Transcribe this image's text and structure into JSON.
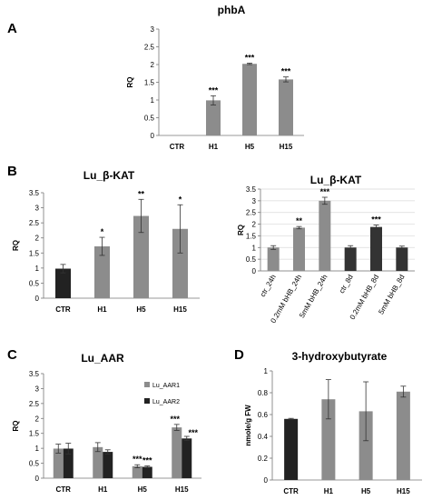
{
  "panel_letters": [
    "A",
    "B",
    "C",
    "D"
  ],
  "chart_data": [
    {
      "type": "bar",
      "title": "phbA",
      "ylabel": "RQ",
      "xlabel": "",
      "ylim": [
        0,
        3
      ],
      "yticks": [
        "0",
        "0.5",
        "1",
        "1.5",
        "2",
        "2.5",
        "3"
      ],
      "categories": [
        "CTR",
        "H1",
        "H5",
        "H15"
      ],
      "series": [
        {
          "values": [
            0,
            0.99,
            2.02,
            1.58
          ],
          "errors": [
            0,
            0.13,
            0.02,
            0.07
          ],
          "color": "#8c8c8c"
        }
      ],
      "annotations": [
        "",
        "***",
        "***",
        "***"
      ],
      "grid": "none"
    },
    {
      "type": "bar",
      "title": "Lu_β-KAT",
      "ylabel": "RQ",
      "xlabel": "",
      "ylim": [
        0,
        3.5
      ],
      "yticks": [
        "0",
        "0.5",
        "1",
        "1.5",
        "2",
        "2.5",
        "3",
        "3.5"
      ],
      "categories": [
        "CTR",
        "H1",
        "H5",
        "H15"
      ],
      "bar_colors": [
        "#222222",
        "#8c8c8c",
        "#8c8c8c",
        "#8c8c8c"
      ],
      "series": [
        {
          "values": [
            0.98,
            1.72,
            2.73,
            2.3
          ],
          "errors": [
            0.14,
            0.3,
            0.55,
            0.8
          ]
        }
      ],
      "annotations": [
        "",
        "*",
        "**",
        "*"
      ],
      "grid": "none"
    },
    {
      "type": "bar",
      "title": "Lu_β-KAT",
      "ylabel": "RQ",
      "xlabel": "",
      "ylim": [
        0,
        3.5
      ],
      "yticks": [
        "0",
        "0.5",
        "1",
        "1.5",
        "2",
        "2.5",
        "3",
        "3.5"
      ],
      "categories": [
        "ctr_24h",
        "0.2mM bHB_24h",
        "5mM bHB_24h",
        "ctr_8d",
        "0.2mM bHB_8d",
        "5mM bHB_8d"
      ],
      "bar_colors": [
        "#8c8c8c",
        "#8c8c8c",
        "#8c8c8c",
        "#333333",
        "#333333",
        "#333333"
      ],
      "series": [
        {
          "values": [
            1.0,
            1.85,
            3.0,
            1.0,
            1.88,
            1.0
          ],
          "errors": [
            0.08,
            0.05,
            0.15,
            0.08,
            0.08,
            0.06
          ]
        }
      ],
      "annotations": [
        "",
        "**",
        "***",
        "",
        "***",
        ""
      ],
      "grid": "horizontal"
    },
    {
      "type": "bar",
      "title": "Lu_AAR",
      "ylabel": "RQ",
      "xlabel": "",
      "ylim": [
        0,
        3.5
      ],
      "yticks": [
        "0",
        "0.5",
        "1",
        "1.5",
        "2",
        "2.5",
        "3",
        "3.5"
      ],
      "categories": [
        "CTR",
        "H1",
        "H5",
        "H15"
      ],
      "series": [
        {
          "name": "Lu_AAR1",
          "values": [
            0.99,
            1.04,
            0.4,
            1.7
          ],
          "errors": [
            0.15,
            0.15,
            0.05,
            0.1
          ],
          "color": "#8c8c8c"
        },
        {
          "name": "Lu_AAR2",
          "values": [
            0.99,
            0.88,
            0.38,
            1.33
          ],
          "errors": [
            0.18,
            0.07,
            0.03,
            0.07
          ],
          "color": "#222222"
        }
      ],
      "annotations": [
        [
          "",
          ""
        ],
        [
          "",
          ""
        ],
        [
          "***",
          "***"
        ],
        [
          "***",
          "***"
        ]
      ],
      "legend": "top-right",
      "grid": "none"
    },
    {
      "type": "bar",
      "title": "3-hydroxybutyrate",
      "ylabel": "nmole/g FW",
      "xlabel": "",
      "ylim": [
        0,
        1
      ],
      "yticks": [
        "0",
        "0.2",
        "0.4",
        "0.6",
        "0.8",
        "1"
      ],
      "categories": [
        "CTR",
        "H1",
        "H5",
        "H15"
      ],
      "bar_colors": [
        "#222222",
        "#8c8c8c",
        "#8c8c8c",
        "#8c8c8c"
      ],
      "series": [
        {
          "values": [
            0.56,
            0.74,
            0.63,
            0.81
          ],
          "errors": [
            0.005,
            0.18,
            0.27,
            0.05
          ]
        }
      ],
      "annotations": [
        "",
        "",
        "",
        ""
      ],
      "grid": "none"
    }
  ]
}
